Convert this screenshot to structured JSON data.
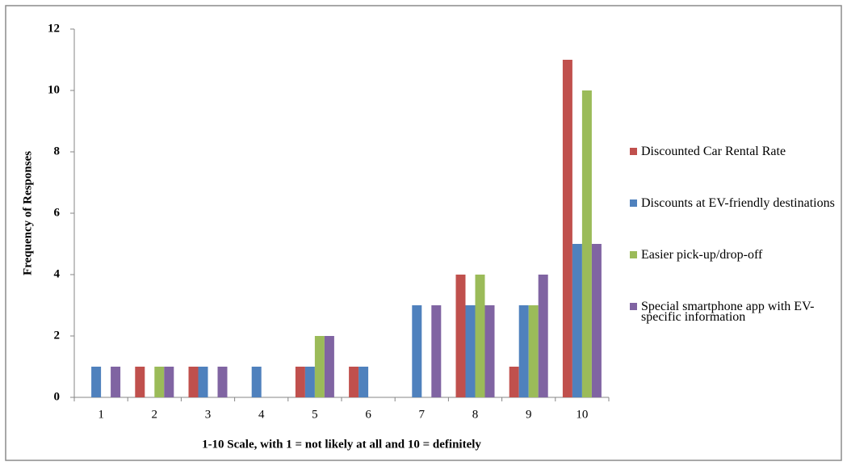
{
  "chart_data": {
    "type": "bar",
    "x_label": "1-10 Scale, with 1 = not likely at all and 10 = definitely",
    "y_label": "Frequency of Responses",
    "categories": [
      "1",
      "2",
      "3",
      "4",
      "5",
      "6",
      "7",
      "8",
      "9",
      "10"
    ],
    "series": [
      {
        "name": "Discounted Car Rental Rate",
        "color": "#c0504d",
        "values": [
          0,
          1,
          1,
          0,
          1,
          1,
          0,
          4,
          1,
          11
        ]
      },
      {
        "name": "Discounts at EV-friendly destinations",
        "color": "#4f81bd",
        "values": [
          1,
          0,
          1,
          1,
          1,
          1,
          3,
          3,
          3,
          5
        ]
      },
      {
        "name": "Easier pick-up/drop-off",
        "color": "#9bbb59",
        "values": [
          0,
          1,
          0,
          0,
          2,
          0,
          0,
          4,
          3,
          10
        ]
      },
      {
        "name": "Special smartphone app with EV-specific information",
        "color": "#8064a2",
        "values": [
          1,
          1,
          1,
          0,
          2,
          0,
          3,
          3,
          4,
          5
        ]
      }
    ],
    "ylim": [
      0,
      12
    ],
    "yticks": [
      0,
      2,
      4,
      6,
      8,
      10,
      12
    ],
    "grid": false,
    "legend": "right"
  }
}
